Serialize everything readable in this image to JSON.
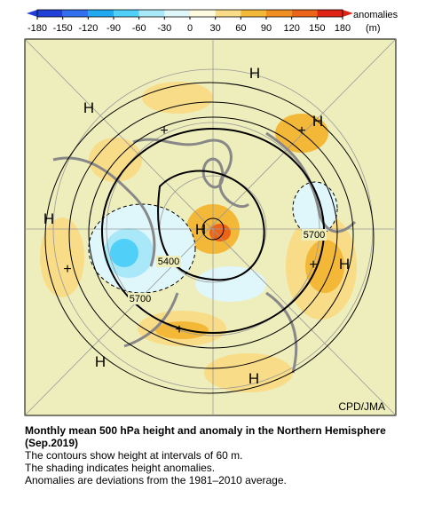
{
  "colorbar": {
    "ticks": [
      -180,
      -150,
      -120,
      -90,
      -60,
      -30,
      0,
      30,
      60,
      90,
      120,
      150,
      180
    ],
    "colors": [
      "#1f3fd8",
      "#2f6ff0",
      "#20a8f0",
      "#50d0f8",
      "#a8e8f8",
      "#dff6fb",
      "#fffbe0",
      "#f8dc88",
      "#f4b838",
      "#f09020",
      "#ec6418",
      "#e02414"
    ],
    "low_color": "#1f3fd8",
    "high_color": "#e02414",
    "label": "anomalies",
    "unit": "(m)"
  },
  "map": {
    "labels": [
      "H",
      "H",
      "H",
      "H",
      "H",
      "H",
      "H",
      "H",
      "+",
      "+",
      "+",
      "+",
      "+",
      "5400",
      "5700",
      "5700"
    ],
    "credit": "CPD/JMA"
  },
  "caption": {
    "title": "Monthly mean 500 hPa height and anomaly in the Northern Hemisphere (Sep.2019)",
    "lines": [
      "The contours show height at intervals of 60 m.",
      "The shading indicates height anomalies.",
      "Anomalies are deviations from the 1981–2010 average."
    ]
  }
}
